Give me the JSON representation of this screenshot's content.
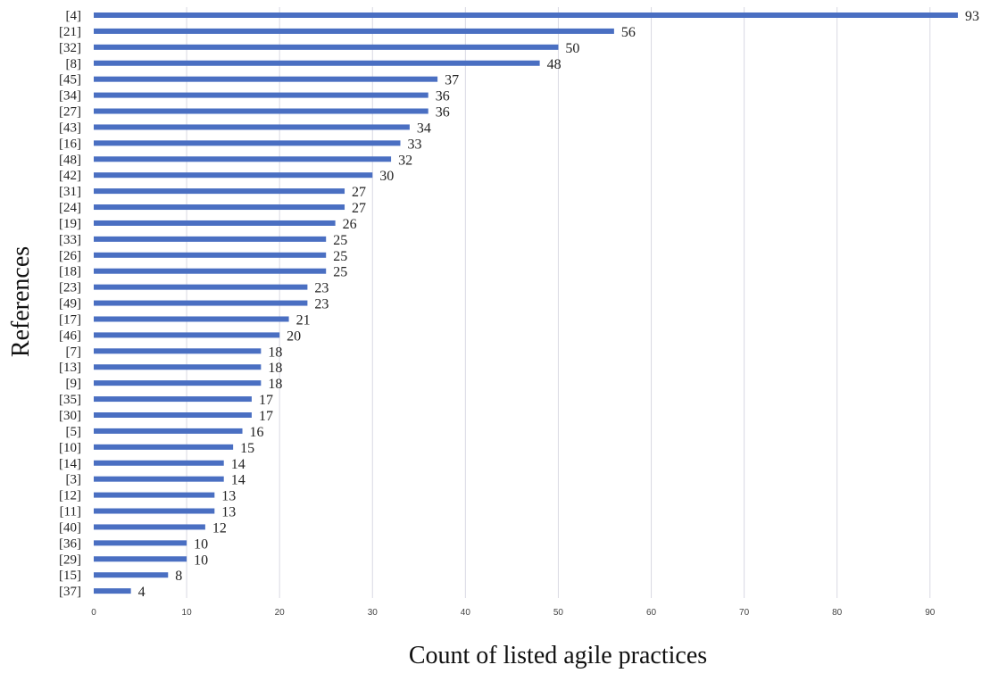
{
  "chart_data": {
    "type": "bar",
    "orientation": "horizontal",
    "xlabel": "Count of listed agile practices",
    "ylabel": "References",
    "xlim": [
      0,
      93
    ],
    "x_ticks": [
      0,
      10,
      20,
      30,
      40,
      50,
      60,
      70,
      80,
      90
    ],
    "grid": true,
    "data_labels": true,
    "bar_color": "#4a6fc2",
    "categories": [
      "[4]",
      "[21]",
      "[32]",
      "[8]",
      "[45]",
      "[34]",
      "[27]",
      "[43]",
      "[16]",
      "[48]",
      "[42]",
      "[31]",
      "[24]",
      "[19]",
      "[33]",
      "[26]",
      "[18]",
      "[23]",
      "[49]",
      "[17]",
      "[46]",
      "[7]",
      "[13]",
      "[9]",
      "[35]",
      "[30]",
      "[5]",
      "[10]",
      "[14]",
      "[3]",
      "[12]",
      "[11]",
      "[40]",
      "[36]",
      "[29]",
      "[15]",
      "[37]"
    ],
    "values": [
      93,
      56,
      50,
      48,
      37,
      36,
      36,
      34,
      33,
      32,
      30,
      27,
      27,
      26,
      25,
      25,
      25,
      23,
      23,
      21,
      20,
      18,
      18,
      18,
      17,
      17,
      16,
      15,
      14,
      14,
      13,
      13,
      12,
      10,
      10,
      8,
      4
    ]
  }
}
